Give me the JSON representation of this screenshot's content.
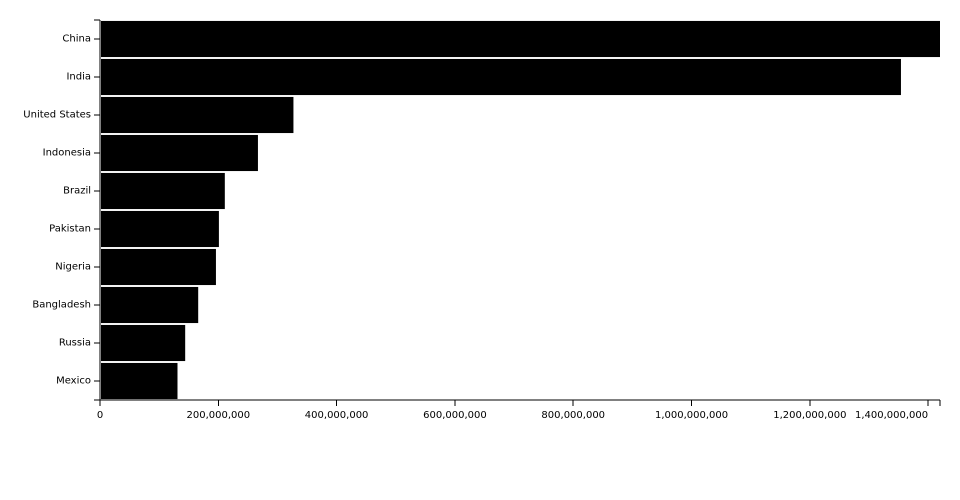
{
  "chart_data": {
    "type": "bar",
    "orientation": "horizontal",
    "title": "",
    "xlabel": "",
    "ylabel": "",
    "xlim": [
      0,
      1420000000
    ],
    "x_ticks": [
      0,
      200000000,
      400000000,
      600000000,
      800000000,
      1000000000,
      1200000000,
      1400000000
    ],
    "x_tick_labels": [
      "0",
      "200,000,000",
      "400,000,000",
      "600,000,000",
      "800,000,000",
      "1,000,000,000",
      "1,200,000,000",
      "1,400,000,000"
    ],
    "grid": false,
    "bar_color": "#000000",
    "categories": [
      "China",
      "India",
      "United States",
      "Indonesia",
      "Brazil",
      "Pakistan",
      "Nigeria",
      "Bangladesh",
      "Russia",
      "Mexico"
    ],
    "values": [
      1420000000,
      1354000000,
      327000000,
      267000000,
      211000000,
      201000000,
      196000000,
      166000000,
      144000000,
      131000000
    ]
  }
}
